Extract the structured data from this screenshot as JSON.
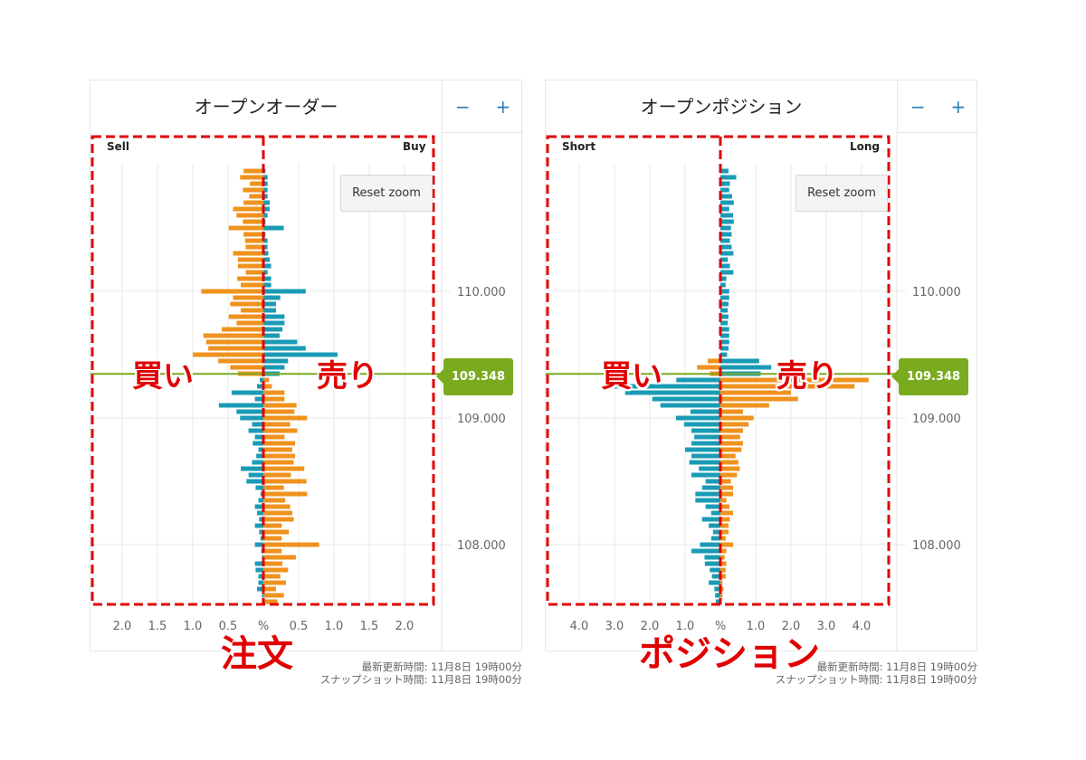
{
  "colors": {
    "orange": "#f0921e",
    "blue": "#1a9bb5",
    "price_green": "#7aab1e",
    "annotation_red": "#e00000",
    "grid": "#e8e8e8"
  },
  "panels": [
    {
      "title": "オープンオーダー",
      "zoom_out": "−",
      "zoom_in": "+",
      "left_label": "Sell",
      "right_label": "Buy",
      "reset_zoom": "Reset zoom",
      "current_price": "109.348",
      "footer_updated": "最新更新時間: 11月8日 19時00分",
      "footer_snapshot": "スナップショット時間: 11月8日 19時00分",
      "annotation_left": "買い",
      "annotation_right": "売り",
      "annotation_bottom": "注文"
    },
    {
      "title": "オープンポジション",
      "zoom_out": "−",
      "zoom_in": "+",
      "left_label": "Short",
      "right_label": "Long",
      "reset_zoom": "Reset zoom",
      "current_price": "109.348",
      "footer_updated": "最新更新時間: 11月8日 19時00分",
      "footer_snapshot": "スナップショット時間: 11月8日 19時00分",
      "annotation_left": "買い",
      "annotation_right": "売り",
      "annotation_bottom": "ポジション"
    }
  ],
  "chart_data": [
    {
      "type": "bar",
      "orientation": "horizontal-diverging",
      "title": "オープンオーダー",
      "left_series": "Sell",
      "right_series": "Buy",
      "current_price": 109.348,
      "color_rule": "above current price: left orange / right blue; below: left blue / right orange",
      "x_unit": "%",
      "x_max": 2.4,
      "x_tick_labels": [
        "2.0",
        "1.5",
        "1.0",
        "0.5",
        "%",
        "0.5",
        "1.0",
        "1.5",
        "2.0"
      ],
      "x_tick_values": [
        -2.0,
        -1.5,
        -1.0,
        -0.5,
        0,
        0.5,
        1.0,
        1.5,
        2.0
      ],
      "y_tick_labels": [
        "110.000",
        "109.000",
        "108.000"
      ],
      "y_tick_values": [
        110,
        109,
        108
      ],
      "grid": true,
      "price_levels": [
        110.95,
        110.9,
        110.85,
        110.8,
        110.75,
        110.7,
        110.65,
        110.6,
        110.55,
        110.5,
        110.45,
        110.4,
        110.35,
        110.3,
        110.25,
        110.2,
        110.15,
        110.1,
        110.05,
        110.0,
        109.95,
        109.9,
        109.85,
        109.8,
        109.75,
        109.7,
        109.65,
        109.6,
        109.55,
        109.5,
        109.45,
        109.4,
        109.35,
        109.3,
        109.25,
        109.2,
        109.15,
        109.1,
        109.05,
        109.0,
        108.95,
        108.9,
        108.85,
        108.8,
        108.75,
        108.7,
        108.65,
        108.6,
        108.55,
        108.5,
        108.45,
        108.4,
        108.35,
        108.3,
        108.25,
        108.2,
        108.15,
        108.1,
        108.05,
        108.0,
        107.95,
        107.9,
        107.85,
        107.8,
        107.75,
        107.7,
        107.65,
        107.6,
        107.55
      ],
      "left_values": [
        0.28,
        0.33,
        0.19,
        0.29,
        0.2,
        0.28,
        0.43,
        0.38,
        0.29,
        0.49,
        0.28,
        0.26,
        0.25,
        0.43,
        0.36,
        0.36,
        0.25,
        0.37,
        0.32,
        0.88,
        0.43,
        0.47,
        0.32,
        0.49,
        0.38,
        0.59,
        0.85,
        0.81,
        0.78,
        1.0,
        0.64,
        0.47,
        0.36,
        0.05,
        0.09,
        0.45,
        0.12,
        0.63,
        0.38,
        0.33,
        0.16,
        0.21,
        0.12,
        0.15,
        0.07,
        0.1,
        0.16,
        0.32,
        0.21,
        0.24,
        0.11,
        0.04,
        0.07,
        0.12,
        0.09,
        0.06,
        0.12,
        0.06,
        0.04,
        0.12,
        0.03,
        0.02,
        0.12,
        0.11,
        0.07,
        0.07,
        0.09,
        0.02,
        0.02
      ],
      "right_values": [
        0.03,
        0.06,
        0.06,
        0.06,
        0.06,
        0.09,
        0.09,
        0.06,
        0.03,
        0.29,
        0.03,
        0.06,
        0.06,
        0.07,
        0.09,
        0.11,
        0.06,
        0.11,
        0.11,
        0.6,
        0.24,
        0.18,
        0.18,
        0.3,
        0.3,
        0.27,
        0.23,
        0.48,
        0.6,
        1.05,
        0.35,
        0.3,
        0.23,
        0.08,
        0.12,
        0.3,
        0.3,
        0.47,
        0.44,
        0.62,
        0.38,
        0.48,
        0.3,
        0.45,
        0.41,
        0.45,
        0.43,
        0.58,
        0.39,
        0.61,
        0.29,
        0.62,
        0.31,
        0.38,
        0.41,
        0.43,
        0.26,
        0.36,
        0.26,
        0.79,
        0.26,
        0.46,
        0.27,
        0.35,
        0.24,
        0.32,
        0.18,
        0.29,
        0.2
      ]
    },
    {
      "type": "bar",
      "orientation": "horizontal-diverging",
      "title": "オープンポジション",
      "left_series": "Short",
      "right_series": "Long",
      "current_price": 109.348,
      "color_rule": "above current price: left orange / right blue; below: left blue / right orange",
      "x_unit": "%",
      "x_max": 4.8,
      "x_tick_labels": [
        "4.0",
        "3.0",
        "2.0",
        "1.0",
        "%",
        "1.0",
        "2.0",
        "3.0",
        "4.0"
      ],
      "x_tick_values": [
        -4.0,
        -3.0,
        -2.0,
        -1.0,
        0,
        1.0,
        2.0,
        3.0,
        4.0
      ],
      "y_tick_labels": [
        "110.000",
        "109.000",
        "108.000"
      ],
      "y_tick_values": [
        110,
        109,
        108
      ],
      "grid": true,
      "price_levels": [
        110.95,
        110.9,
        110.85,
        110.8,
        110.75,
        110.7,
        110.65,
        110.6,
        110.55,
        110.5,
        110.45,
        110.4,
        110.35,
        110.3,
        110.25,
        110.2,
        110.15,
        110.1,
        110.05,
        110.0,
        109.95,
        109.9,
        109.85,
        109.8,
        109.75,
        109.7,
        109.65,
        109.6,
        109.55,
        109.5,
        109.45,
        109.4,
        109.35,
        109.3,
        109.25,
        109.2,
        109.15,
        109.1,
        109.05,
        109.0,
        108.95,
        108.9,
        108.85,
        108.8,
        108.75,
        108.7,
        108.65,
        108.6,
        108.55,
        108.5,
        108.45,
        108.4,
        108.35,
        108.3,
        108.25,
        108.2,
        108.15,
        108.1,
        108.05,
        108.0,
        107.95,
        107.9,
        107.85,
        107.8,
        107.75,
        107.7,
        107.65,
        107.6,
        107.55
      ],
      "left_values": [
        0,
        0,
        0,
        0,
        0,
        0,
        0,
        0,
        0,
        0,
        0,
        0,
        0,
        0,
        0,
        0,
        0,
        0,
        0,
        0,
        0,
        0,
        0,
        0,
        0,
        0,
        0,
        0,
        0,
        0,
        0.36,
        0.66,
        0.3,
        1.25,
        3.3,
        2.7,
        1.93,
        1.7,
        0.85,
        1.26,
        1.03,
        0.82,
        0.74,
        0.82,
        1.0,
        0.82,
        0.88,
        0.61,
        0.82,
        0.42,
        0.52,
        0.71,
        0.71,
        0.42,
        0.26,
        0.52,
        0.33,
        0.21,
        0.26,
        0.58,
        0.82,
        0.45,
        0.44,
        0.3,
        0.24,
        0.33,
        0.17,
        0.15,
        0.13
      ],
      "right_values": [
        0.23,
        0.45,
        0.27,
        0.25,
        0.33,
        0.38,
        0.25,
        0.36,
        0.38,
        0.3,
        0.32,
        0.27,
        0.32,
        0.37,
        0.21,
        0.27,
        0.37,
        0.17,
        0.15,
        0.25,
        0.25,
        0.23,
        0.21,
        0.23,
        0.21,
        0.25,
        0.25,
        0.25,
        0.23,
        0.19,
        1.1,
        1.44,
        1.14,
        4.2,
        3.8,
        2.0,
        2.2,
        1.38,
        0.64,
        0.94,
        0.8,
        0.64,
        0.56,
        0.64,
        0.6,
        0.43,
        0.51,
        0.55,
        0.47,
        0.3,
        0.36,
        0.36,
        0.17,
        0.26,
        0.36,
        0.27,
        0.23,
        0.23,
        0.15,
        0.36,
        0.17,
        0.12,
        0.17,
        0.15,
        0.15,
        0.06,
        0.09,
        0.06,
        0.04
      ]
    }
  ]
}
